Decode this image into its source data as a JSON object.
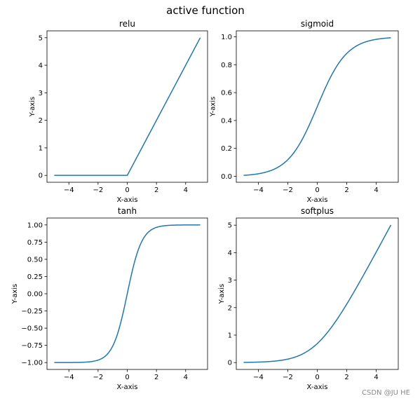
{
  "figure": {
    "suptitle": "active function",
    "watermark": "CSDN @JU HE",
    "line_color": "#1f77b4"
  },
  "chart_data": [
    {
      "type": "line",
      "title": "relu",
      "xlabel": "X-axis",
      "ylabel": "Y-axis",
      "function": "max(0, x)",
      "xlim": [
        -5.5,
        5.5
      ],
      "ylim": [
        -0.25,
        5.25
      ],
      "xticks": [
        -4,
        -2,
        0,
        2,
        4
      ],
      "yticks": [
        0,
        1,
        2,
        3,
        4,
        5
      ],
      "ytick_labels": [
        "0",
        "1",
        "2",
        "3",
        "4",
        "5"
      ],
      "x": [
        -5,
        -4,
        -3,
        -2,
        -1,
        0,
        1,
        2,
        3,
        4,
        5
      ],
      "y": [
        0,
        0,
        0,
        0,
        0,
        0,
        1,
        2,
        3,
        4,
        5
      ]
    },
    {
      "type": "line",
      "title": "sigmoid",
      "xlabel": "X-axis",
      "ylabel": "Y-axis",
      "function": "1 / (1 + exp(-x))",
      "xlim": [
        -5.5,
        5.5
      ],
      "ylim": [
        -0.043,
        1.043
      ],
      "xticks": [
        -4,
        -2,
        0,
        2,
        4
      ],
      "yticks": [
        0.0,
        0.2,
        0.4,
        0.6,
        0.8,
        1.0
      ],
      "ytick_labels": [
        "0.0",
        "0.2",
        "0.4",
        "0.6",
        "0.8",
        "1.0"
      ],
      "x": [
        -5,
        -4,
        -3,
        -2,
        -1,
        0,
        1,
        2,
        3,
        4,
        5
      ],
      "y": [
        0.0067,
        0.018,
        0.0474,
        0.1192,
        0.2689,
        0.5,
        0.7311,
        0.8808,
        0.9526,
        0.982,
        0.9933
      ]
    },
    {
      "type": "line",
      "title": "tanh",
      "xlabel": "X-axis",
      "ylabel": "Y-axis",
      "function": "tanh(x)",
      "xlim": [
        -5.5,
        5.5
      ],
      "ylim": [
        -1.1,
        1.1
      ],
      "xticks": [
        -4,
        -2,
        0,
        2,
        4
      ],
      "yticks": [
        -1.0,
        -0.75,
        -0.5,
        -0.25,
        0.0,
        0.25,
        0.5,
        0.75,
        1.0
      ],
      "ytick_labels": [
        "−1.00",
        "−0.75",
        "−0.50",
        "−0.25",
        "0.00",
        "0.25",
        "0.50",
        "0.75",
        "1.00"
      ],
      "x": [
        -5,
        -4,
        -3,
        -2,
        -1,
        0,
        1,
        2,
        3,
        4,
        5
      ],
      "y": [
        -0.9999,
        -0.9993,
        -0.9951,
        -0.964,
        -0.7616,
        0,
        0.7616,
        0.964,
        0.9951,
        0.9993,
        0.9999
      ]
    },
    {
      "type": "line",
      "title": "softplus",
      "xlabel": "X-axis",
      "ylabel": "Y-axis",
      "function": "log(1 + exp(x))",
      "xlim": [
        -5.5,
        5.5
      ],
      "ylim": [
        -0.25,
        5.26
      ],
      "xticks": [
        -4,
        -2,
        0,
        2,
        4
      ],
      "yticks": [
        0,
        1,
        2,
        3,
        4,
        5
      ],
      "ytick_labels": [
        "0",
        "1",
        "2",
        "3",
        "4",
        "5"
      ],
      "x": [
        -5,
        -4,
        -3,
        -2,
        -1,
        0,
        1,
        2,
        3,
        4,
        5
      ],
      "y": [
        0.0067,
        0.0181,
        0.0486,
        0.1269,
        0.3133,
        0.6931,
        1.3133,
        2.1269,
        3.0486,
        4.0181,
        5.0067
      ]
    }
  ]
}
